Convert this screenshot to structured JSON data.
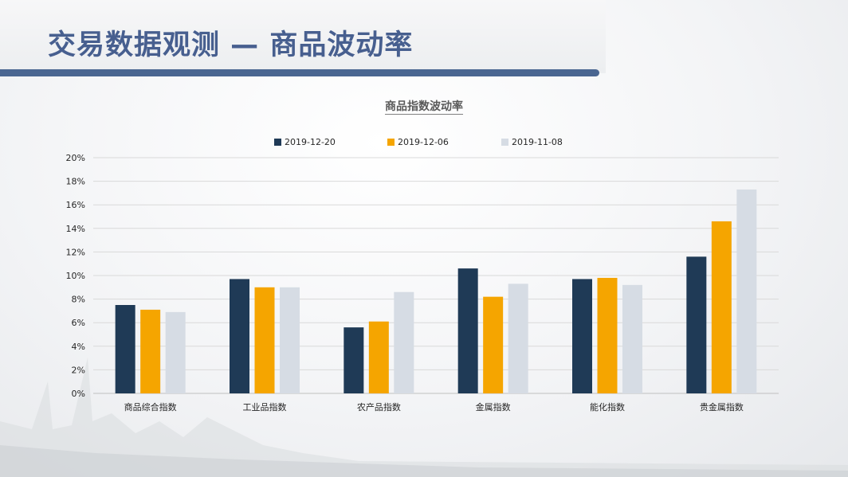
{
  "slide": {
    "title": "交易数据观测 — 商品波动率"
  },
  "colors": {
    "title": "#475f8f",
    "band": "#4a6691",
    "series": [
      "#1f3a56",
      "#f5a500",
      "#d6dce4"
    ]
  },
  "chart_data": {
    "type": "bar",
    "title": "商品指数波动率",
    "categories": [
      "商品综合指数",
      "工业品指数",
      "农产品指数",
      "金属指数",
      "能化指数",
      "贵金属指数"
    ],
    "series": [
      {
        "name": "2019-12-20",
        "values": [
          7.5,
          9.7,
          5.6,
          10.6,
          9.7,
          11.6
        ]
      },
      {
        "name": "2019-12-06",
        "values": [
          7.1,
          9.0,
          6.1,
          8.2,
          9.8,
          14.6
        ]
      },
      {
        "name": "2019-11-08",
        "values": [
          6.9,
          9.0,
          8.6,
          9.3,
          9.2,
          17.3
        ]
      }
    ],
    "yticks": [
      "0%",
      "2%",
      "4%",
      "6%",
      "8%",
      "10%",
      "12%",
      "14%",
      "16%",
      "18%",
      "20%"
    ],
    "ylim": [
      0,
      20
    ],
    "xlabel": "",
    "ylabel": "",
    "grid": true,
    "legend_position": "top"
  }
}
